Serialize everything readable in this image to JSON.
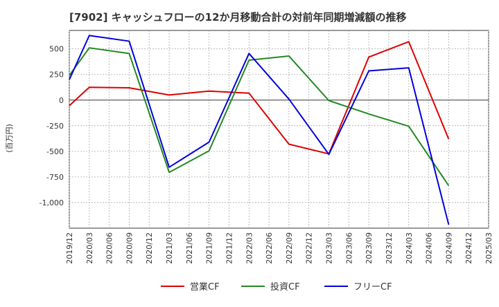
{
  "chart_data": {
    "type": "line",
    "title": "[7902]  キャッシュフローの12か月移動合計の対前年同期増減額の推移",
    "ylabel": "(百万円)",
    "xlabel": "",
    "ylim": [
      -1250,
      680
    ],
    "yticks": [
      500,
      250,
      0,
      -250,
      -500,
      -750,
      -1000
    ],
    "ytick_labels": [
      "500",
      "250",
      "0",
      "-250",
      "-500",
      "-750",
      "-1,000"
    ],
    "x": [
      "2019/12",
      "2020/03",
      "2020/06",
      "2020/09",
      "2020/12",
      "2021/03",
      "2021/06",
      "2021/09",
      "2021/12",
      "2022/03",
      "2022/06",
      "2022/09",
      "2022/12",
      "2023/03",
      "2023/06",
      "2023/09",
      "2023/12",
      "2024/03",
      "2024/06",
      "2024/09",
      "2024/12",
      "2025/03"
    ],
    "grid": true,
    "legend_position": "bottom",
    "series": [
      {
        "name": "営業CF",
        "color": "#dd0000",
        "points": [
          [
            "2019/12",
            -55
          ],
          [
            "2020/03",
            125
          ],
          [
            "2020/09",
            120
          ],
          [
            "2021/03",
            50
          ],
          [
            "2021/09",
            88
          ],
          [
            "2022/03",
            68
          ],
          [
            "2022/09",
            -430
          ],
          [
            "2023/03",
            -525
          ],
          [
            "2023/09",
            420
          ],
          [
            "2024/03",
            570
          ],
          [
            "2024/09",
            -380
          ]
        ]
      },
      {
        "name": "投資CF",
        "color": "#228822",
        "points": [
          [
            "2019/12",
            240
          ],
          [
            "2020/03",
            510
          ],
          [
            "2020/09",
            455
          ],
          [
            "2021/03",
            -705
          ],
          [
            "2021/09",
            -495
          ],
          [
            "2022/03",
            390
          ],
          [
            "2022/09",
            430
          ],
          [
            "2023/03",
            -5
          ],
          [
            "2023/09",
            -135
          ],
          [
            "2024/03",
            -255
          ],
          [
            "2024/09",
            -835
          ]
        ]
      },
      {
        "name": "フリーCF",
        "color": "#0000dd",
        "points": [
          [
            "2019/12",
            200
          ],
          [
            "2020/03",
            630
          ],
          [
            "2020/09",
            575
          ],
          [
            "2021/03",
            -655
          ],
          [
            "2021/09",
            -410
          ],
          [
            "2022/03",
            455
          ],
          [
            "2022/09",
            10
          ],
          [
            "2023/03",
            -530
          ],
          [
            "2023/09",
            285
          ],
          [
            "2024/03",
            315
          ],
          [
            "2024/09",
            -1215
          ]
        ]
      }
    ]
  }
}
